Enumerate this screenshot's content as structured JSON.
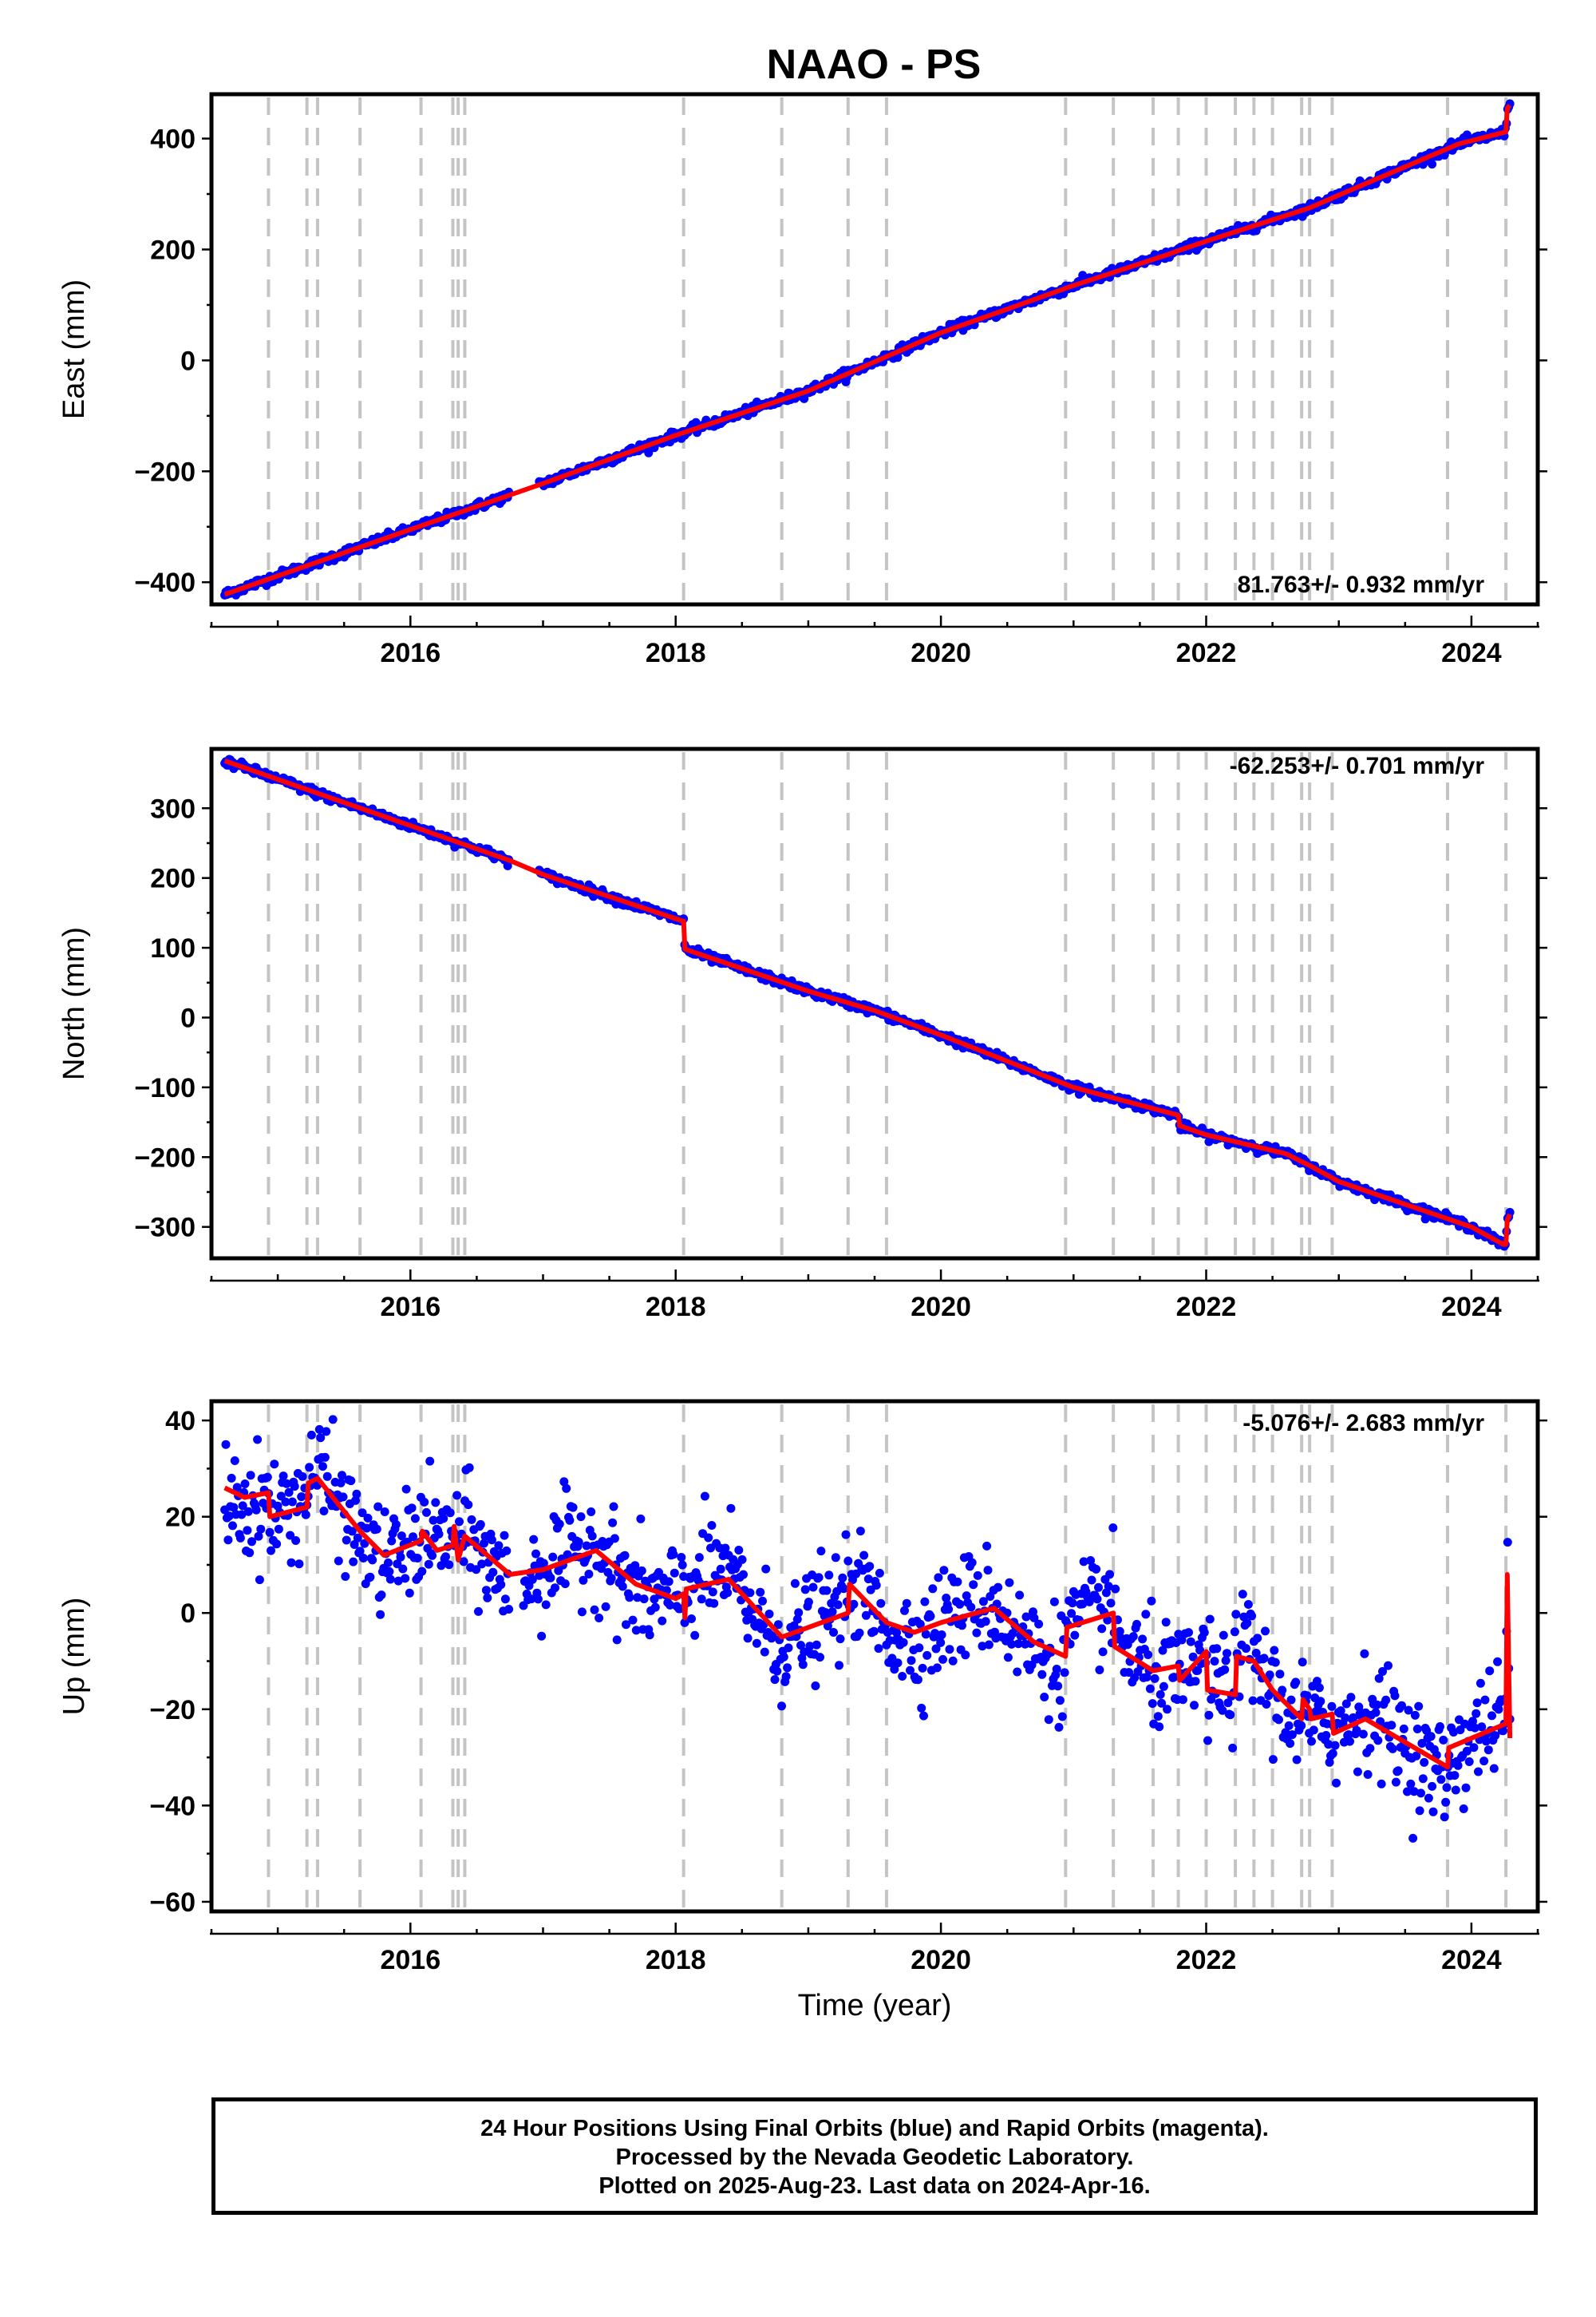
{
  "title": "NAAO - PS",
  "event_lines": [
    2014.93,
    2015.22,
    2015.3,
    2015.62,
    2016.08,
    2016.32,
    2016.36,
    2016.41,
    2018.06,
    2018.8,
    2019.3,
    2019.59,
    2020.94,
    2021.3,
    2021.6,
    2021.79,
    2022.0,
    2022.22,
    2022.36,
    2022.5,
    2022.72,
    2022.78,
    2022.95,
    2023.82,
    2024.26
  ],
  "chart_data": [
    {
      "type": "scatter",
      "panel": "east",
      "ylabel": "East (mm)",
      "xlim": [
        2014.5,
        2024.5
      ],
      "ylim": [
        -440,
        480
      ],
      "xticks": [
        2016,
        2018,
        2020,
        2022,
        2024
      ],
      "yticks": [
        -400,
        -200,
        0,
        200,
        400
      ],
      "ytick_labels": [
        "−400",
        "−200",
        "0",
        "200",
        "400"
      ],
      "xtick_labels": [
        "2016",
        "2018",
        "2020",
        "2022",
        "2024"
      ],
      "rate_text": "81.763+/- 0.932 mm/yr",
      "gap": [
        2016.75,
        2016.97
      ],
      "model_points": [
        [
          2014.6,
          -422
        ],
        [
          2016.0,
          -305
        ],
        [
          2017.0,
          -222
        ],
        [
          2018.0,
          -135
        ],
        [
          2019.0,
          -55
        ],
        [
          2020.0,
          50
        ],
        [
          2021.0,
          135
        ],
        [
          2021.7,
          190
        ],
        [
          2021.79,
          198
        ],
        [
          2022.0,
          215
        ],
        [
          2022.78,
          275
        ],
        [
          2023.0,
          298
        ],
        [
          2023.9,
          390
        ],
        [
          2024.26,
          412
        ],
        [
          2024.27,
          455
        ],
        [
          2024.29,
          460
        ]
      ],
      "noise": 4,
      "spread": 0
    },
    {
      "type": "scatter",
      "panel": "north",
      "ylabel": "North (mm)",
      "xlim": [
        2014.5,
        2024.5
      ],
      "ylim": [
        -345,
        385
      ],
      "xticks": [
        2016,
        2018,
        2020,
        2022,
        2024
      ],
      "yticks": [
        -300,
        -200,
        -100,
        0,
        100,
        200,
        300
      ],
      "ytick_labels": [
        "−300",
        "−200",
        "−100",
        "0",
        "100",
        "200",
        "300"
      ],
      "xtick_labels": [
        "2016",
        "2018",
        "2020",
        "2022",
        "2024"
      ],
      "rate_text": "-62.253+/- 0.701 mm/yr",
      "gap": [
        2016.75,
        2016.97
      ],
      "model_points": [
        [
          2014.6,
          368
        ],
        [
          2016.0,
          275
        ],
        [
          2016.75,
          225
        ],
        [
          2017.0,
          205
        ],
        [
          2018.06,
          138
        ],
        [
          2018.07,
          98
        ],
        [
          2019.0,
          38
        ],
        [
          2019.5,
          10
        ],
        [
          2020.0,
          -25
        ],
        [
          2021.0,
          -100
        ],
        [
          2021.79,
          -140
        ],
        [
          2021.8,
          -155
        ],
        [
          2022.0,
          -168
        ],
        [
          2022.6,
          -195
        ],
        [
          2022.78,
          -212
        ],
        [
          2023.0,
          -235
        ],
        [
          2024.0,
          -300
        ],
        [
          2024.24,
          -325
        ],
        [
          2024.26,
          -325
        ],
        [
          2024.27,
          -290
        ],
        [
          2024.29,
          -282
        ]
      ],
      "noise": 3,
      "spread": 0
    },
    {
      "type": "scatter",
      "panel": "up",
      "ylabel": "Up (mm)",
      "xlabel": "Time (year)",
      "xlim": [
        2014.5,
        2024.5
      ],
      "ylim": [
        -62,
        44
      ],
      "xticks": [
        2016,
        2018,
        2020,
        2022,
        2024
      ],
      "yticks": [
        -60,
        -40,
        -20,
        0,
        20,
        40
      ],
      "ytick_labels": [
        "−60",
        "−40",
        "−20",
        "0",
        "20",
        "40"
      ],
      "xtick_labels": [
        "2016",
        "2018",
        "2020",
        "2022",
        "2024"
      ],
      "rate_text": "-5.076+/- 2.683 mm/yr",
      "gap": [
        2016.75,
        2016.85
      ],
      "model_points": [
        [
          2014.6,
          26
        ],
        [
          2014.75,
          24
        ],
        [
          2014.93,
          25
        ],
        [
          2014.94,
          20
        ],
        [
          2015.22,
          22
        ],
        [
          2015.23,
          27
        ],
        [
          2015.3,
          28
        ],
        [
          2015.62,
          17
        ],
        [
          2015.8,
          12
        ],
        [
          2016.08,
          15
        ],
        [
          2016.09,
          17
        ],
        [
          2016.2,
          13
        ],
        [
          2016.32,
          14
        ],
        [
          2016.33,
          18
        ],
        [
          2016.36,
          11
        ],
        [
          2016.41,
          16
        ],
        [
          2016.75,
          8
        ],
        [
          2017.0,
          9
        ],
        [
          2017.4,
          13
        ],
        [
          2017.7,
          6
        ],
        [
          2018.0,
          3
        ],
        [
          2018.06,
          4
        ],
        [
          2018.07,
          -1
        ],
        [
          2018.08,
          5
        ],
        [
          2018.4,
          7
        ],
        [
          2018.8,
          -5
        ],
        [
          2019.0,
          -3
        ],
        [
          2019.3,
          0
        ],
        [
          2019.31,
          6
        ],
        [
          2019.59,
          -2
        ],
        [
          2019.8,
          -4
        ],
        [
          2020.0,
          -2
        ],
        [
          2020.4,
          1
        ],
        [
          2020.7,
          -6
        ],
        [
          2020.94,
          -9
        ],
        [
          2020.95,
          -3
        ],
        [
          2021.3,
          0
        ],
        [
          2021.31,
          -7
        ],
        [
          2021.6,
          -12
        ],
        [
          2021.79,
          -11
        ],
        [
          2021.8,
          -14
        ],
        [
          2022.0,
          -8
        ],
        [
          2022.01,
          -16
        ],
        [
          2022.22,
          -17
        ],
        [
          2022.23,
          -9
        ],
        [
          2022.36,
          -10
        ],
        [
          2022.5,
          -16
        ],
        [
          2022.72,
          -22
        ],
        [
          2022.73,
          -18
        ],
        [
          2022.78,
          -20
        ],
        [
          2022.79,
          -22
        ],
        [
          2022.95,
          -21
        ],
        [
          2022.96,
          -25
        ],
        [
          2023.2,
          -22
        ],
        [
          2023.82,
          -32
        ],
        [
          2023.83,
          -28
        ],
        [
          2024.26,
          -23
        ],
        [
          2024.27,
          8
        ],
        [
          2024.29,
          -26
        ]
      ],
      "noise": 5,
      "spread": 0
    }
  ],
  "footer": {
    "line1": "24 Hour Positions Using Final Orbits (blue) and Rapid Orbits (magenta).",
    "line2": "Processed by the Nevada Geodetic Laboratory.",
    "line3": "Plotted on 2025-Aug-23. Last data on 2024-Apr-16."
  },
  "colors": {
    "data": "#0000ff",
    "model": "#ff0000",
    "event": "#c4c4c4"
  }
}
